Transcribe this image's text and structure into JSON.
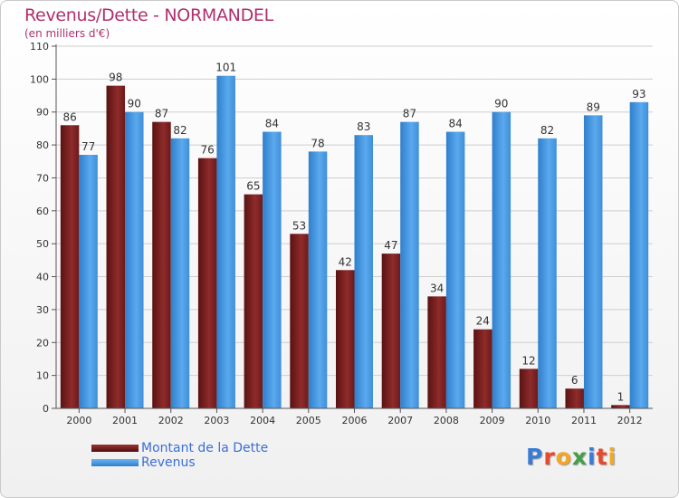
{
  "header": {
    "title": "Revenus/Dette - NORMANDEL",
    "subtitle": "(en milliers d'€)"
  },
  "logo": {
    "text": "Proxiti",
    "letter_colors": [
      "#3a7bd5",
      "#e8492c",
      "#f5a623",
      "#43a047",
      "#3a7bd5",
      "#e8492c",
      "#f5a623"
    ]
  },
  "colors": {
    "debt": "#6b1a1a",
    "debt_light": "#9a3434",
    "revenue": "#3f8fd8",
    "revenue_light": "#5ba9ee",
    "axis": "#555555",
    "grid": "#cfcfcf"
  },
  "chart_data": {
    "type": "bar",
    "title": "Revenus/Dette - NORMANDEL",
    "subtitle": "(en milliers d'€)",
    "categories": [
      "2000",
      "2001",
      "2002",
      "2003",
      "2004",
      "2005",
      "2006",
      "2007",
      "2008",
      "2009",
      "2010",
      "2011",
      "2012"
    ],
    "series": [
      {
        "name": "Montant de la Dette",
        "values": [
          86,
          98,
          87,
          76,
          65,
          53,
          42,
          47,
          34,
          24,
          12,
          6,
          1
        ]
      },
      {
        "name": "Revenus",
        "values": [
          77,
          90,
          82,
          101,
          84,
          78,
          83,
          87,
          84,
          90,
          82,
          89,
          93
        ]
      }
    ],
    "ylim": [
      0,
      110
    ],
    "yticks": [
      "0",
      "10",
      "20",
      "30",
      "40",
      "50",
      "60",
      "70",
      "80",
      "90",
      "100",
      "110"
    ],
    "grid": true,
    "legend_position": "bottom-left"
  }
}
